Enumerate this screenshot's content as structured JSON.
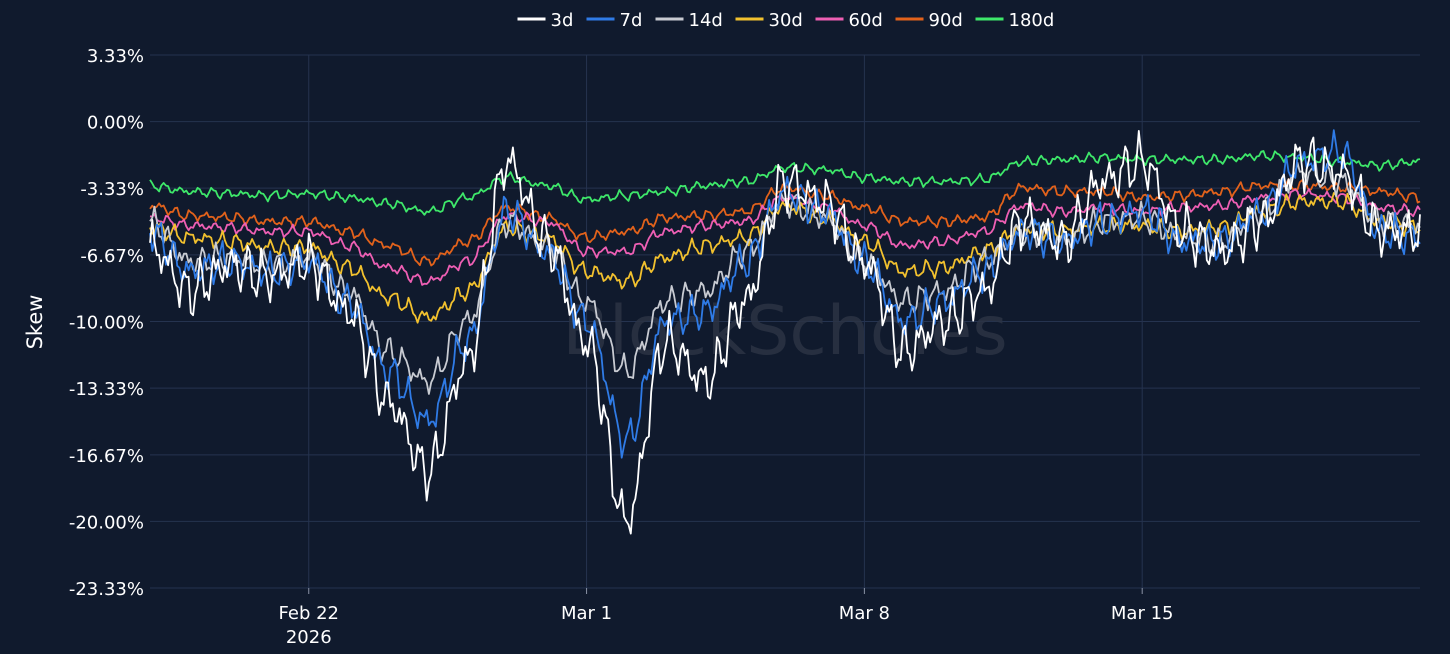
{
  "chart_data": {
    "type": "line",
    "title": "",
    "xlabel": "",
    "ylabel": "Skew",
    "watermark": "BlockScholes",
    "ylim": [
      -23.33,
      3.33
    ],
    "y_ticks": [
      3.33,
      0.0,
      -3.33,
      -6.67,
      -10.0,
      -13.33,
      -16.67,
      -20.0,
      -23.33
    ],
    "y_tick_labels": [
      "3.33%",
      "0.00%",
      "-3.33%",
      "-6.67%",
      "-10.00%",
      "-13.33%",
      "-16.67%",
      "-20.00%",
      "-23.33%"
    ],
    "x_range": [
      "2026-02-18",
      "2026-03-22"
    ],
    "x_ticks": [
      {
        "date": "2026-02-22",
        "label": "Feb 22",
        "sublabel": "2026"
      },
      {
        "date": "2026-03-01",
        "label": "Mar 1",
        "sublabel": ""
      },
      {
        "date": "2026-03-08",
        "label": "Mar 8",
        "sublabel": ""
      },
      {
        "date": "2026-03-15",
        "label": "Mar 15",
        "sublabel": ""
      }
    ],
    "grid": true,
    "legend_position": "top-center",
    "series": [
      {
        "name": "3d",
        "color": "#ffffff",
        "x": [
          "2026-02-18",
          "2026-02-19",
          "2026-02-20",
          "2026-02-21",
          "2026-02-22",
          "2026-02-23",
          "2026-02-24",
          "2026-02-25",
          "2026-02-26",
          "2026-02-27",
          "2026-02-28",
          "2026-03-01",
          "2026-03-02",
          "2026-03-03",
          "2026-03-04",
          "2026-03-05",
          "2026-03-06",
          "2026-03-07",
          "2026-03-08",
          "2026-03-09",
          "2026-03-10",
          "2026-03-11",
          "2026-03-12",
          "2026-03-13",
          "2026-03-14",
          "2026-03-15",
          "2026-03-16",
          "2026-03-17",
          "2026-03-18",
          "2026-03-19",
          "2026-03-20",
          "2026-03-21",
          "2026-03-22"
        ],
        "values": [
          -6.2,
          -8.5,
          -7.2,
          -7.8,
          -7.0,
          -9.5,
          -14.0,
          -17.5,
          -12.0,
          -2.0,
          -6.0,
          -11.0,
          -20.0,
          -11.0,
          -13.0,
          -9.0,
          -3.0,
          -4.0,
          -7.0,
          -11.5,
          -10.0,
          -8.5,
          -5.0,
          -6.0,
          -3.0,
          -2.0,
          -5.5,
          -6.5,
          -5.0,
          -2.0,
          -2.5,
          -5.5,
          -5.5
        ]
      },
      {
        "name": "7d",
        "color": "#2f7be6",
        "x": [
          "2026-02-18",
          "2026-02-19",
          "2026-02-20",
          "2026-02-21",
          "2026-02-22",
          "2026-02-23",
          "2026-02-24",
          "2026-02-25",
          "2026-02-26",
          "2026-02-27",
          "2026-02-28",
          "2026-03-01",
          "2026-03-02",
          "2026-03-03",
          "2026-03-04",
          "2026-03-05",
          "2026-03-06",
          "2026-03-07",
          "2026-03-08",
          "2026-03-09",
          "2026-03-10",
          "2026-03-11",
          "2026-03-12",
          "2026-03-13",
          "2026-03-14",
          "2026-03-15",
          "2026-03-16",
          "2026-03-17",
          "2026-03-18",
          "2026-03-19",
          "2026-03-20",
          "2026-03-21",
          "2026-03-22"
        ],
        "values": [
          -5.5,
          -7.5,
          -7.0,
          -7.5,
          -7.0,
          -9.0,
          -12.5,
          -15.0,
          -11.0,
          -4.5,
          -6.5,
          -10.0,
          -16.0,
          -10.0,
          -9.5,
          -7.0,
          -3.5,
          -4.5,
          -7.0,
          -10.0,
          -9.0,
          -7.5,
          -5.5,
          -6.0,
          -5.0,
          -4.5,
          -6.0,
          -6.0,
          -4.5,
          -2.0,
          -1.5,
          -5.5,
          -5.8
        ]
      },
      {
        "name": "14d",
        "color": "#c8cbd2",
        "x": [
          "2026-02-18",
          "2026-02-19",
          "2026-02-20",
          "2026-02-21",
          "2026-02-22",
          "2026-02-23",
          "2026-02-24",
          "2026-02-25",
          "2026-02-26",
          "2026-02-27",
          "2026-02-28",
          "2026-03-01",
          "2026-03-02",
          "2026-03-03",
          "2026-03-04",
          "2026-03-05",
          "2026-03-06",
          "2026-03-07",
          "2026-03-08",
          "2026-03-09",
          "2026-03-10",
          "2026-03-11",
          "2026-03-12",
          "2026-03-13",
          "2026-03-14",
          "2026-03-15",
          "2026-03-16",
          "2026-03-17",
          "2026-03-18",
          "2026-03-19",
          "2026-03-20",
          "2026-03-21",
          "2026-03-22"
        ],
        "values": [
          -5.0,
          -7.0,
          -6.8,
          -7.2,
          -6.8,
          -8.5,
          -11.5,
          -13.0,
          -10.0,
          -5.0,
          -6.2,
          -9.0,
          -12.5,
          -9.0,
          -8.5,
          -6.5,
          -4.0,
          -4.8,
          -7.0,
          -9.0,
          -8.5,
          -7.0,
          -5.5,
          -6.0,
          -5.0,
          -4.8,
          -5.8,
          -6.0,
          -4.5,
          -2.5,
          -3.0,
          -5.0,
          -5.2
        ]
      },
      {
        "name": "30d",
        "color": "#f2c12e",
        "x": [
          "2026-02-18",
          "2026-02-19",
          "2026-02-20",
          "2026-02-21",
          "2026-02-22",
          "2026-02-23",
          "2026-02-24",
          "2026-02-25",
          "2026-02-26",
          "2026-02-27",
          "2026-02-28",
          "2026-03-01",
          "2026-03-02",
          "2026-03-03",
          "2026-03-04",
          "2026-03-05",
          "2026-03-06",
          "2026-03-07",
          "2026-03-08",
          "2026-03-09",
          "2026-03-10",
          "2026-03-11",
          "2026-03-12",
          "2026-03-13",
          "2026-03-14",
          "2026-03-15",
          "2026-03-16",
          "2026-03-17",
          "2026-03-18",
          "2026-03-19",
          "2026-03-20",
          "2026-03-21",
          "2026-03-22"
        ],
        "values": [
          -5.3,
          -5.8,
          -6.0,
          -6.3,
          -6.3,
          -7.3,
          -8.8,
          -9.8,
          -8.5,
          -5.3,
          -5.8,
          -7.5,
          -8.0,
          -6.8,
          -6.2,
          -5.8,
          -4.2,
          -4.8,
          -6.0,
          -7.5,
          -7.3,
          -6.5,
          -5.3,
          -5.5,
          -5.2,
          -5.2,
          -5.5,
          -5.3,
          -4.5,
          -4.0,
          -4.0,
          -5.0,
          -5.3
        ]
      },
      {
        "name": "60d",
        "color": "#ee5fb4",
        "x": [
          "2026-02-18",
          "2026-02-19",
          "2026-02-20",
          "2026-02-21",
          "2026-02-22",
          "2026-02-23",
          "2026-02-24",
          "2026-02-25",
          "2026-02-26",
          "2026-02-27",
          "2026-02-28",
          "2026-03-01",
          "2026-03-02",
          "2026-03-03",
          "2026-03-04",
          "2026-03-05",
          "2026-03-06",
          "2026-03-07",
          "2026-03-08",
          "2026-03-09",
          "2026-03-10",
          "2026-03-11",
          "2026-03-12",
          "2026-03-13",
          "2026-03-14",
          "2026-03-15",
          "2026-03-16",
          "2026-03-17",
          "2026-03-18",
          "2026-03-19",
          "2026-03-20",
          "2026-03-21",
          "2026-03-22"
        ],
        "values": [
          -4.8,
          -5.2,
          -5.3,
          -5.5,
          -5.5,
          -6.2,
          -7.3,
          -8.0,
          -7.0,
          -4.7,
          -5.0,
          -6.5,
          -6.5,
          -5.5,
          -5.2,
          -5.0,
          -3.8,
          -4.3,
          -5.2,
          -6.2,
          -6.0,
          -5.5,
          -4.2,
          -4.5,
          -4.3,
          -4.5,
          -4.3,
          -4.2,
          -3.8,
          -3.6,
          -3.8,
          -4.3,
          -4.5
        ]
      },
      {
        "name": "90d",
        "color": "#e2621b",
        "x": [
          "2026-02-18",
          "2026-02-19",
          "2026-02-20",
          "2026-02-21",
          "2026-02-22",
          "2026-02-23",
          "2026-02-24",
          "2026-02-25",
          "2026-02-26",
          "2026-02-27",
          "2026-02-28",
          "2026-03-01",
          "2026-03-02",
          "2026-03-03",
          "2026-03-04",
          "2026-03-05",
          "2026-03-06",
          "2026-03-07",
          "2026-03-08",
          "2026-03-09",
          "2026-03-10",
          "2026-03-11",
          "2026-03-12",
          "2026-03-13",
          "2026-03-14",
          "2026-03-15",
          "2026-03-16",
          "2026-03-17",
          "2026-03-18",
          "2026-03-19",
          "2026-03-20",
          "2026-03-21",
          "2026-03-22"
        ],
        "values": [
          -4.2,
          -4.7,
          -4.8,
          -5.0,
          -5.0,
          -5.5,
          -6.2,
          -7.0,
          -6.0,
          -4.3,
          -4.8,
          -5.8,
          -5.5,
          -4.8,
          -4.7,
          -4.5,
          -3.3,
          -3.7,
          -4.3,
          -5.0,
          -5.0,
          -4.8,
          -3.3,
          -3.5,
          -3.5,
          -3.8,
          -3.7,
          -3.5,
          -3.2,
          -3.2,
          -3.3,
          -3.5,
          -3.8
        ]
      },
      {
        "name": "180d",
        "color": "#3ee86a",
        "x": [
          "2026-02-18",
          "2026-02-19",
          "2026-02-20",
          "2026-02-21",
          "2026-02-22",
          "2026-02-23",
          "2026-02-24",
          "2026-02-25",
          "2026-02-26",
          "2026-02-27",
          "2026-02-28",
          "2026-03-01",
          "2026-03-02",
          "2026-03-03",
          "2026-03-04",
          "2026-03-05",
          "2026-03-06",
          "2026-03-07",
          "2026-03-08",
          "2026-03-09",
          "2026-03-10",
          "2026-03-11",
          "2026-03-12",
          "2026-03-13",
          "2026-03-14",
          "2026-03-15",
          "2026-03-16",
          "2026-03-17",
          "2026-03-18",
          "2026-03-19",
          "2026-03-20",
          "2026-03-21",
          "2026-03-22"
        ],
        "values": [
          -3.2,
          -3.5,
          -3.6,
          -3.7,
          -3.6,
          -3.8,
          -4.1,
          -4.5,
          -3.8,
          -2.8,
          -3.2,
          -3.9,
          -3.7,
          -3.5,
          -3.2,
          -3.0,
          -2.3,
          -2.4,
          -2.8,
          -3.0,
          -3.0,
          -2.9,
          -2.0,
          -1.9,
          -1.8,
          -1.9,
          -1.9,
          -1.9,
          -1.7,
          -1.8,
          -2.0,
          -2.2,
          -2.0
        ]
      }
    ]
  }
}
